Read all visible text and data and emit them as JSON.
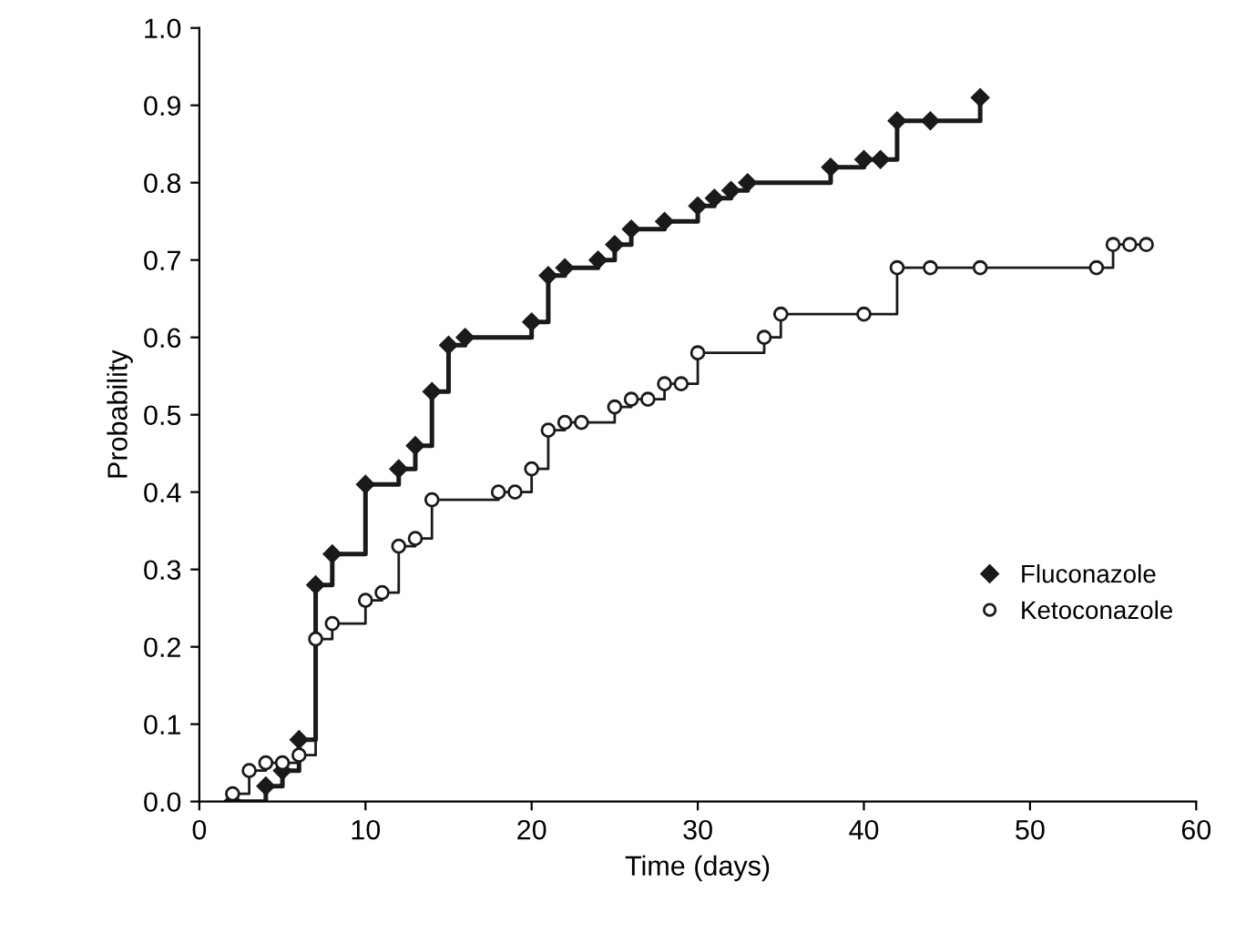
{
  "chart_data": {
    "type": "step",
    "xlabel": "Time (days)",
    "ylabel": "Probability",
    "xlim": [
      0,
      60
    ],
    "xticks": [
      0,
      10,
      20,
      30,
      40,
      50,
      60
    ],
    "ylim": [
      0,
      1.0
    ],
    "yticks": [
      {
        "value": 0,
        "label": "0.0"
      },
      0.1,
      0.2,
      0.3,
      0.4,
      0.5,
      0.6,
      0.7,
      0.8,
      0.9,
      {
        "value": 1,
        "label": "1.0"
      }
    ],
    "grid": false,
    "legend": "bottom right",
    "series": [
      {
        "name": "Fluconazole",
        "color": "#1a1a1a",
        "marker": "diamond",
        "x": [
          2,
          4,
          5,
          6,
          7,
          8,
          10,
          12,
          13,
          14,
          15,
          16,
          20,
          21,
          22,
          24,
          25,
          26,
          28,
          30,
          31,
          32,
          33,
          38,
          40,
          41,
          42,
          44,
          47
        ],
        "values": [
          0,
          0.02,
          0.04,
          0.08,
          0.28,
          0.32,
          0.41,
          0.43,
          0.46,
          0.53,
          0.59,
          0.6,
          0.62,
          0.68,
          0.69,
          0.7,
          0.72,
          0.74,
          0.75,
          0.77,
          0.78,
          0.79,
          0.8,
          0.82,
          0.83,
          0.83,
          0.88,
          0.88,
          0.91
        ]
      },
      {
        "name": "Ketoconazole",
        "color": "#1a1a1a",
        "marker": "circle",
        "x": [
          2,
          3,
          4,
          5,
          6,
          7,
          8,
          10,
          11,
          12,
          13,
          14,
          18,
          19,
          20,
          21,
          22,
          23,
          25,
          26,
          27,
          28,
          29,
          30,
          34,
          35,
          40,
          42,
          44,
          47,
          54,
          55,
          56,
          57
        ],
        "values": [
          0.01,
          0.04,
          0.05,
          0.05,
          0.06,
          0.21,
          0.23,
          0.26,
          0.27,
          0.33,
          0.34,
          0.39,
          0.4,
          0.4,
          0.43,
          0.48,
          0.49,
          0.49,
          0.51,
          0.52,
          0.52,
          0.54,
          0.54,
          0.58,
          0.6,
          0.63,
          0.63,
          0.69,
          0.69,
          0.69,
          0.69,
          0.72,
          0.72,
          0.72
        ]
      }
    ]
  }
}
